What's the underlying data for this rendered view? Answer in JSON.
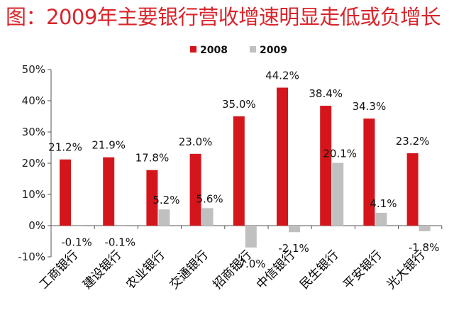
{
  "chart_data": {
    "type": "bar",
    "title": "图：2009年主要银行营收增速明显走低或负增长",
    "categories": [
      "工商银行",
      "建设银行",
      "农业银行",
      "交通银行",
      "招商银行",
      "中信银行",
      "民生银行",
      "平安银行",
      "光大银行"
    ],
    "series": [
      {
        "name": "2008",
        "color": "#d4161c",
        "values": [
          21.2,
          21.9,
          17.8,
          23.0,
          35.0,
          44.2,
          38.4,
          34.3,
          23.2
        ],
        "labels": [
          "21.2%",
          "21.9%",
          "17.8%",
          "23.0%",
          "35.0%",
          "44.2%",
          "38.4%",
          "34.3%",
          "23.2%"
        ]
      },
      {
        "name": "2009",
        "color": "#c0c0c0",
        "values": [
          -0.1,
          -0.1,
          5.2,
          5.6,
          -7.0,
          -2.1,
          20.1,
          4.1,
          -1.8
        ],
        "labels": [
          "-0.1%",
          "-0.1%",
          "5.2%",
          "5.6%",
          "-7.0%",
          "-2.1%",
          "20.1%",
          "4.1%",
          "-1.8%"
        ]
      }
    ],
    "y_ticks": [
      "50%",
      "40%",
      "30%",
      "20%",
      "10%",
      "0%",
      "-10%"
    ],
    "y_tick_values": [
      50,
      40,
      30,
      20,
      10,
      0,
      -10
    ],
    "ylim": [
      -10,
      50
    ],
    "grid": false,
    "legend_position": "top-center",
    "xlabel": "",
    "ylabel": ""
  }
}
